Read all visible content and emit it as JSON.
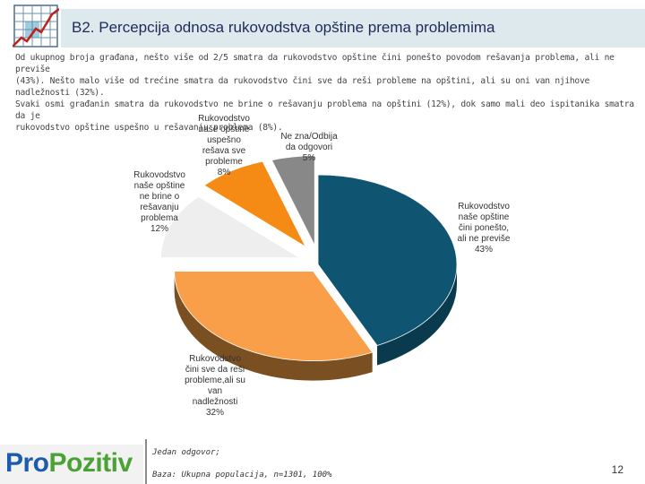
{
  "header": {
    "title": "B2. Percepcija odnosa rukovodstva opštine prema problemima"
  },
  "intro": [
    "Od ukupnog broja građana, nešto više od 2/5 smatra da rukovodstvo opštine čini ponešto povodom rešavanja problema, ali ne previše",
    "(43%). Nešto malo više od trećine smatra da rukovodstvo čini sve da reši probleme na opštini, ali su oni van njihove nadležnosti (32%).",
    "Svaki osmi građanin smatra da rukovodstvo ne brine o rešavanju problema na opštini (12%), dok samo mali deo ispitanika smatra da je",
    "rukovodstvo opštine uspešno u rešavanju problema (8%)."
  ],
  "chart_data": {
    "type": "pie",
    "title": "",
    "slices": [
      {
        "lines": [
          "Rukovodstvo",
          "naše opštine",
          "čini ponešto,",
          "ali ne previše",
          "43%"
        ],
        "value": 43,
        "color": "#0f5471",
        "side": "#0a3a4e"
      },
      {
        "lines": [
          "Rukovodstvo",
          "čini sve da reši",
          "probleme,ali su",
          "van",
          "nadležnosti",
          "32%"
        ],
        "value": 32,
        "color": "#f99f49",
        "side": "#7a5022"
      },
      {
        "lines": [
          "Rukovodstvo",
          "naše opštine",
          "ne brine o",
          "rešavanju",
          "problema",
          "12%"
        ],
        "value": 12,
        "color": "#eeeeee",
        "side": "#8f8f8f"
      },
      {
        "lines": [
          "Rukovodstvo",
          "naše opštine",
          "uspešno",
          "rešava sve",
          "probleme",
          "8%"
        ],
        "value": 8,
        "color": "#f58b14",
        "side": "#8a4a08"
      },
      {
        "lines": [
          "Ne zna/Odbija",
          "da odgovori",
          "5%"
        ],
        "value": 5,
        "color": "#888888",
        "side": "#4e4e4e"
      }
    ]
  },
  "footer": {
    "brand_pro": "Pro",
    "brand_pozitiv": "Pozitiv",
    "note_answer": "Jedan odgovor;",
    "note_base": "Baza: Ukupna populacija, n=1301, 100%",
    "page_number": "12"
  }
}
